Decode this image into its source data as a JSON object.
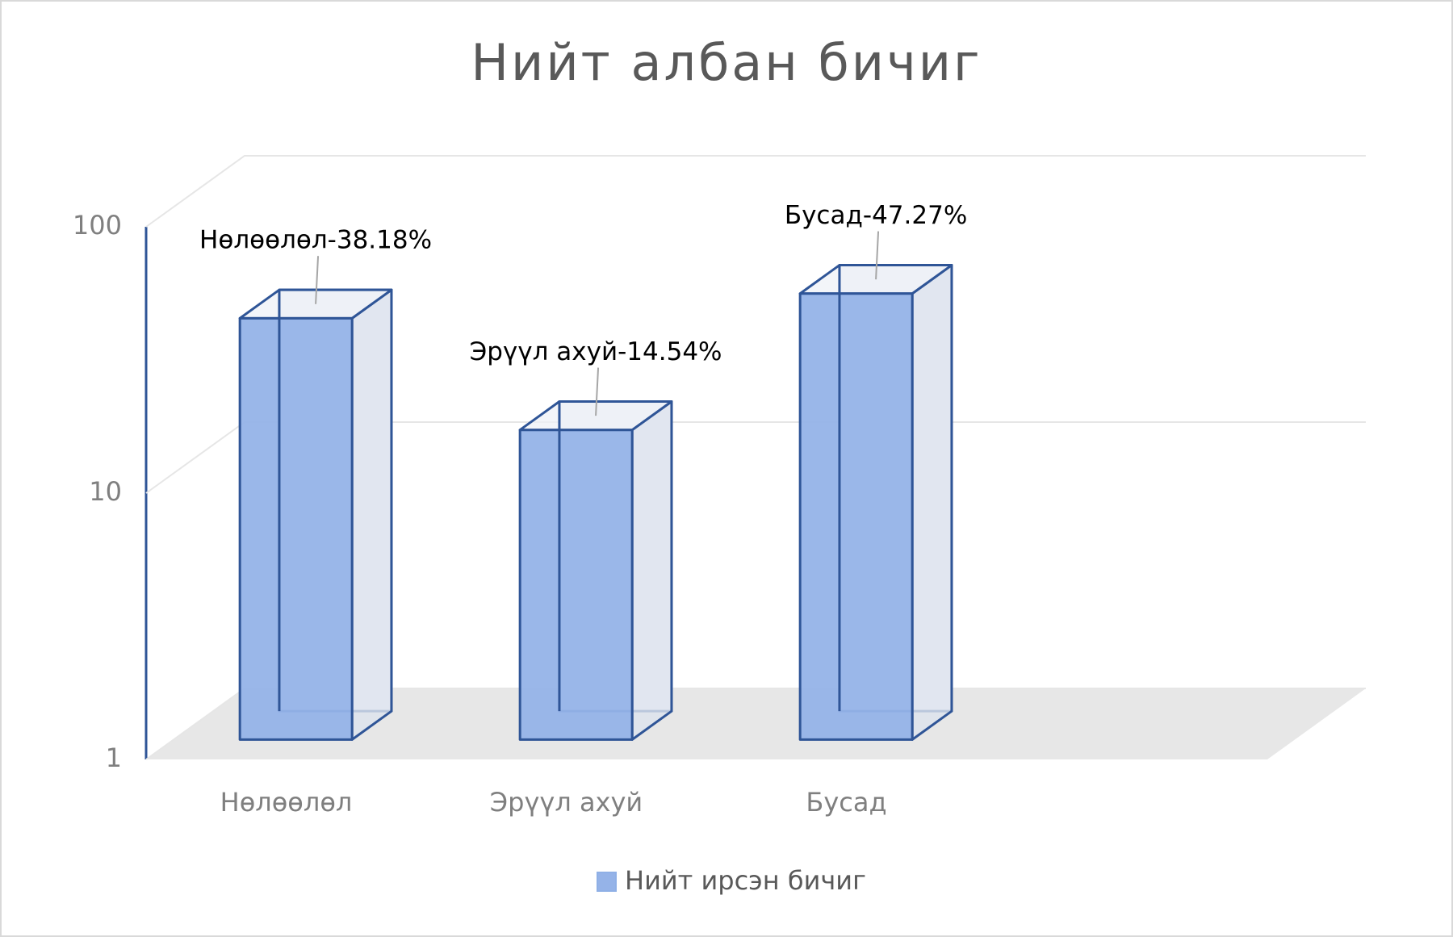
{
  "chart_data": {
    "type": "bar",
    "title": "Нийт албан бичиг",
    "categories": [
      "Нөлөөлөл",
      "Эрүүл ахуй",
      "Бусад"
    ],
    "series": [
      {
        "name": "Нийт ирсэн бичиг",
        "color": "#95b3e8",
        "values": [
          38.18,
          14.54,
          47.27
        ],
        "value_labels": [
          "Нөлөөлөл-38.18%",
          "Эрүүл ахуй-14.54%",
          "Бусад-47.27%"
        ]
      }
    ],
    "ylim": [
      1,
      100
    ],
    "yticks": [
      1,
      10,
      100
    ],
    "log_scale": true,
    "grid": true,
    "legend": "bottom"
  }
}
